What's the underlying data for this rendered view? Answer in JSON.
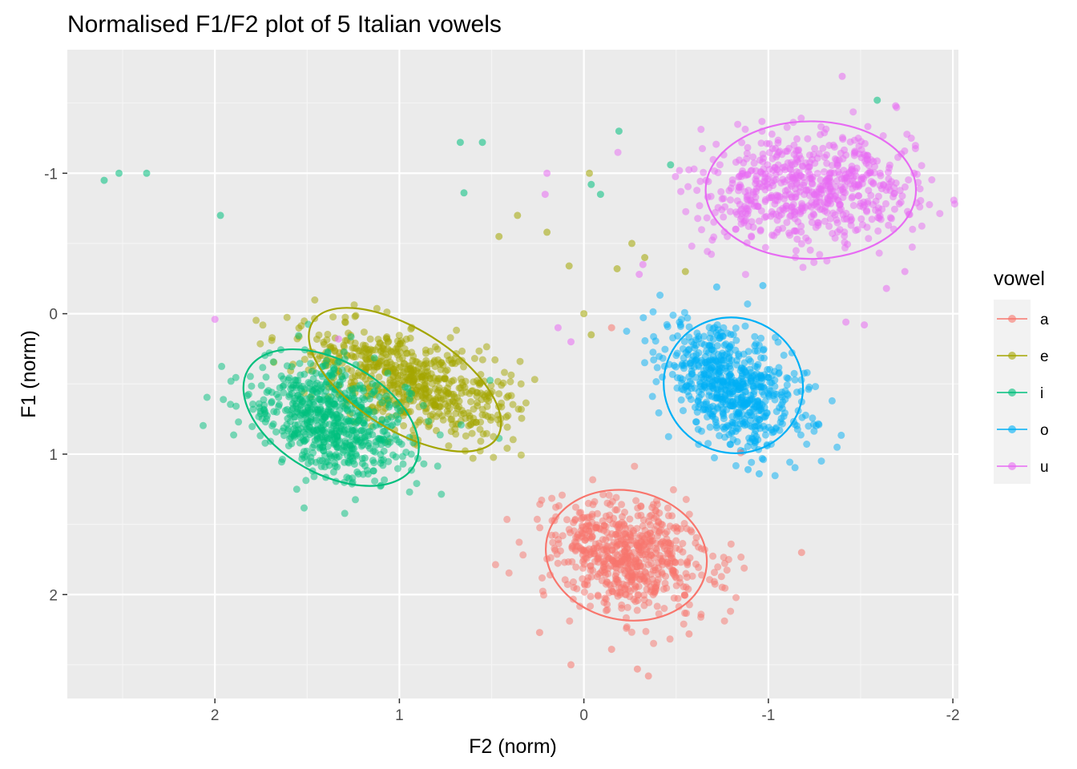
{
  "chart_data": {
    "type": "scatter",
    "title": "Normalised F1/F2 plot of 5 Italian vowels",
    "xlabel": "F2 (norm)",
    "ylabel": "F1 (norm)",
    "x_reversed": true,
    "y_reversed": true,
    "xlim": [
      2.8,
      -2.03
    ],
    "ylim": [
      -1.88,
      2.74
    ],
    "x_ticks": [
      2,
      1,
      0,
      -1,
      -2
    ],
    "x_tick_labels": [
      "2",
      "1",
      "0",
      "-1",
      "-2"
    ],
    "y_ticks": [
      -1,
      0,
      1,
      2
    ],
    "y_tick_labels": [
      "-1",
      "0",
      "1",
      "2"
    ],
    "grid": true,
    "legend": {
      "title": "vowel",
      "position": "right"
    },
    "ellipse_level": "95% confidence ellipse per vowel",
    "series": [
      {
        "name": "a",
        "color": "#F8766D",
        "n_points": 650,
        "center": [
          -0.23,
          1.73
        ],
        "spread": [
          0.22,
          0.2
        ],
        "correlation": -0.15,
        "ellipse": {
          "cx": -0.23,
          "cy": 1.72,
          "rx": 0.44,
          "ry": 0.46,
          "angle": -12
        }
      },
      {
        "name": "e",
        "color": "#A3A500",
        "n_points": 650,
        "center": [
          0.96,
          0.48
        ],
        "spread": [
          0.28,
          0.2
        ],
        "correlation": -0.55,
        "ellipse": {
          "cx": 0.97,
          "cy": 0.47,
          "rx": 0.59,
          "ry": 0.36,
          "angle": -32
        }
      },
      {
        "name": "i",
        "color": "#00BF7D",
        "n_points": 650,
        "center": [
          1.37,
          0.75
        ],
        "spread": [
          0.22,
          0.22
        ],
        "correlation": -0.35,
        "ellipse": {
          "cx": 1.37,
          "cy": 0.74,
          "rx": 0.52,
          "ry": 0.4,
          "angle": -30
        }
      },
      {
        "name": "o",
        "color": "#00B0F6",
        "n_points": 650,
        "center": [
          -0.8,
          0.52
        ],
        "spread": [
          0.18,
          0.22
        ],
        "correlation": -0.45,
        "ellipse": {
          "cx": -0.81,
          "cy": 0.51,
          "rx": 0.38,
          "ry": 0.48,
          "angle": -25
        }
      },
      {
        "name": "u",
        "color": "#E76BF3",
        "n_points": 650,
        "center": [
          -1.23,
          -0.88
        ],
        "spread": [
          0.28,
          0.2
        ],
        "correlation": 0.0,
        "ellipse": {
          "cx": -1.23,
          "cy": -0.88,
          "rx": 0.57,
          "ry": 0.49,
          "angle": 0
        }
      }
    ],
    "outliers": [
      {
        "vowel": "i",
        "x": 2.6,
        "y": -0.95
      },
      {
        "vowel": "i",
        "x": 2.52,
        "y": -1.0
      },
      {
        "vowel": "i",
        "x": 2.37,
        "y": -1.0
      },
      {
        "vowel": "i",
        "x": 1.97,
        "y": -0.7
      },
      {
        "vowel": "u",
        "x": 2.0,
        "y": 0.04
      },
      {
        "vowel": "u",
        "x": 1.33,
        "y": 0.18
      },
      {
        "vowel": "e",
        "x": 0.73,
        "y": 0.63
      },
      {
        "vowel": "a",
        "x": -1.18,
        "y": 1.7
      },
      {
        "vowel": "i",
        "x": -0.19,
        "y": -1.3
      },
      {
        "vowel": "i",
        "x": 0.55,
        "y": -1.22
      },
      {
        "vowel": "i",
        "x": 0.67,
        "y": -1.22
      },
      {
        "vowel": "u",
        "x": 0.2,
        "y": -1.0
      },
      {
        "vowel": "u",
        "x": 0.21,
        "y": -0.85
      },
      {
        "vowel": "e",
        "x": 0.36,
        "y": -0.7
      },
      {
        "vowel": "e",
        "x": 0.2,
        "y": -0.58
      },
      {
        "vowel": "e",
        "x": 0.08,
        "y": -0.34
      },
      {
        "vowel": "e",
        "x": -0.26,
        "y": -0.5
      },
      {
        "vowel": "e",
        "x": -0.33,
        "y": -0.4
      },
      {
        "vowel": "u",
        "x": 0.14,
        "y": 0.1
      },
      {
        "vowel": "u",
        "x": 0.07,
        "y": 0.2
      },
      {
        "vowel": "e",
        "x": 0.0,
        "y": 0.0
      },
      {
        "vowel": "e",
        "x": -0.04,
        "y": 0.15
      },
      {
        "vowel": "a",
        "x": -0.15,
        "y": 0.1
      },
      {
        "vowel": "u",
        "x": -0.3,
        "y": -0.28
      },
      {
        "vowel": "u",
        "x": -0.32,
        "y": -0.35
      },
      {
        "vowel": "e",
        "x": -0.03,
        "y": -1.0
      },
      {
        "vowel": "i",
        "x": -0.04,
        "y": -0.92
      },
      {
        "vowel": "i",
        "x": -0.09,
        "y": -0.85
      },
      {
        "vowel": "e",
        "x": -0.55,
        "y": -0.3
      },
      {
        "vowel": "o",
        "x": -0.72,
        "y": -0.19
      },
      {
        "vowel": "o",
        "x": -0.97,
        "y": -0.2
      },
      {
        "vowel": "u",
        "x": -1.42,
        "y": 0.06
      },
      {
        "vowel": "u",
        "x": -1.52,
        "y": 0.08
      },
      {
        "vowel": "u",
        "x": -1.74,
        "y": -0.3
      },
      {
        "vowel": "u",
        "x": -1.64,
        "y": -0.18
      },
      {
        "vowel": "i",
        "x": -1.59,
        "y": -1.52
      },
      {
        "vowel": "u",
        "x": -1.4,
        "y": -1.69
      },
      {
        "vowel": "u",
        "x": -1.69,
        "y": -1.48
      },
      {
        "vowel": "u",
        "x": -1.79,
        "y": -1.0
      },
      {
        "vowel": "o",
        "x": -0.89,
        "y": 1.11
      },
      {
        "vowel": "o",
        "x": -0.95,
        "y": 1.14
      },
      {
        "vowel": "a",
        "x": -0.85,
        "y": 0.99
      },
      {
        "vowel": "a",
        "x": -0.15,
        "y": 2.39
      },
      {
        "vowel": "a",
        "x": -0.29,
        "y": 2.53
      },
      {
        "vowel": "a",
        "x": -0.35,
        "y": 2.58
      },
      {
        "vowel": "a",
        "x": 0.07,
        "y": 2.5
      },
      {
        "vowel": "a",
        "x": 0.24,
        "y": 2.27
      },
      {
        "vowel": "a",
        "x": -0.57,
        "y": 2.28
      },
      {
        "vowel": "e",
        "x": 0.46,
        "y": -0.55
      },
      {
        "vowel": "i",
        "x": 0.65,
        "y": -0.86
      },
      {
        "vowel": "e",
        "x": -0.18,
        "y": -0.32
      },
      {
        "vowel": "i",
        "x": -0.47,
        "y": -1.06
      }
    ]
  }
}
